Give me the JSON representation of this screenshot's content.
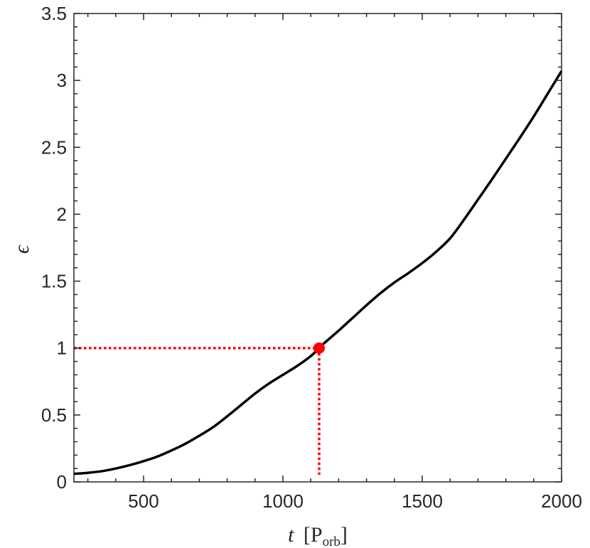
{
  "chart_data": {
    "type": "line",
    "xlabel": {
      "symbol": "t",
      "unit_base": "P",
      "unit_sub": "orb"
    },
    "ylabel": "ϵ",
    "xlim": [
      250,
      2000
    ],
    "ylim": [
      0,
      3.5
    ],
    "x_ticks": [
      500,
      1000,
      1500,
      2000
    ],
    "y_ticks": [
      0,
      0.5,
      1,
      1.5,
      2,
      2.5,
      3,
      3.5
    ],
    "x_tick_labels": [
      "500",
      "1000",
      "1500",
      "2000"
    ],
    "y_tick_labels": [
      "0",
      "0.5",
      "1",
      "1.5",
      "2",
      "2.5",
      "3",
      "3.5"
    ],
    "grid": false,
    "series": [
      {
        "color": "#000000",
        "x": [
          250,
          300,
          350,
          400,
          450,
          500,
          550,
          600,
          650,
          700,
          750,
          800,
          850,
          900,
          950,
          1000,
          1050,
          1100,
          1130,
          1150,
          1200,
          1250,
          1300,
          1350,
          1400,
          1450,
          1500,
          1550,
          1600,
          1650,
          1700,
          1750,
          1800,
          1850,
          1900,
          1950,
          2000
        ],
        "y": [
          0.06,
          0.068,
          0.08,
          0.1,
          0.125,
          0.155,
          0.19,
          0.235,
          0.285,
          0.345,
          0.41,
          0.49,
          0.575,
          0.66,
          0.735,
          0.8,
          0.865,
          0.94,
          1.0,
          1.04,
          1.13,
          1.225,
          1.32,
          1.41,
          1.49,
          1.56,
          1.635,
          1.72,
          1.82,
          1.96,
          2.11,
          2.26,
          2.415,
          2.57,
          2.73,
          2.9,
          3.07
        ]
      }
    ],
    "highlight_point": {
      "x": 1130,
      "y": 1.0,
      "color": "#ff0000"
    },
    "guide_color": "#ff0000"
  }
}
